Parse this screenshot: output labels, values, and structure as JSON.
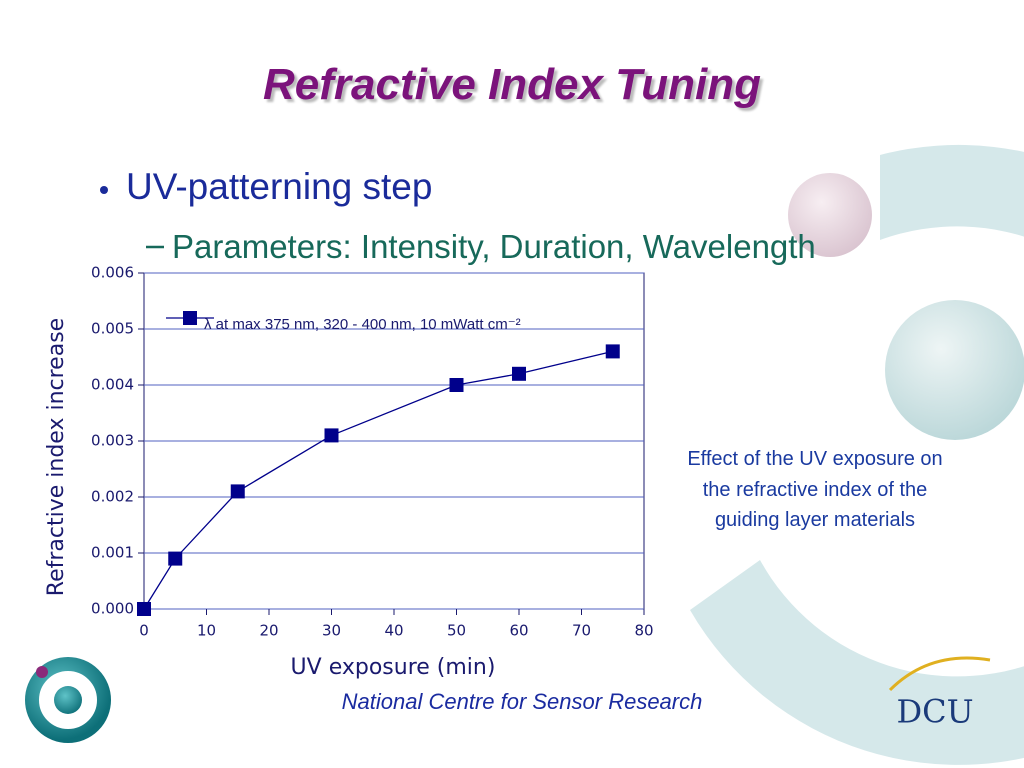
{
  "title": "Refractive Index Tuning",
  "bullets": [
    "UV-patterning step",
    "Parameters: Intensity, Duration, Wavelength"
  ],
  "caption": "Effect of the UV exposure on the refractive index of the guiding layer materials",
  "footer": "National Centre for Sensor Research",
  "logo": "DCU",
  "chart_data": {
    "type": "line",
    "x_label": "UV exposure (min)",
    "y_label": "Refractive index increase",
    "x": [
      0,
      5,
      15,
      30,
      50,
      60,
      75
    ],
    "series": [
      {
        "name": "λ at max 375 nm, 320 - 400 nm, 10 mWatt cm⁻²",
        "color": "#00008b",
        "values": [
          0.0,
          0.0009,
          0.0021,
          0.0031,
          0.004,
          0.0042,
          0.0046
        ]
      }
    ],
    "xlim": [
      0,
      80
    ],
    "xticks": [
      0,
      10,
      20,
      30,
      40,
      50,
      60,
      70,
      80
    ],
    "ylim": [
      0,
      0.006
    ],
    "yticks": [
      {
        "value": 0,
        "label": "0.000"
      },
      {
        "value": 0.001,
        "label": "0.001"
      },
      {
        "value": 0.002,
        "label": "0.002"
      },
      {
        "value": 0.003,
        "label": "0.003"
      },
      {
        "value": 0.004,
        "label": "0.004"
      },
      {
        "value": 0.005,
        "label": "0.005"
      },
      {
        "value": 0.006,
        "label": "0.006"
      }
    ],
    "grid": true,
    "legend": "upper left"
  }
}
